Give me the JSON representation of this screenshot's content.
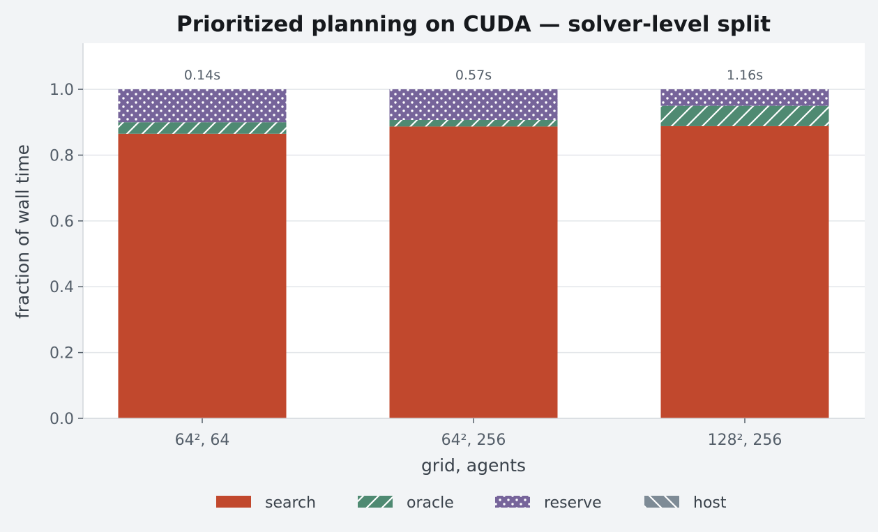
{
  "chart_data": {
    "type": "bar",
    "stacked": true,
    "title": "Prioritized planning on CUDA — solver-level split",
    "xlabel": "grid, agents",
    "ylabel": "fraction of wall time",
    "categories": [
      "64², 64",
      "64², 256",
      "128², 256"
    ],
    "ylim": [
      0,
      1.14
    ],
    "yticks": [
      0.0,
      0.2,
      0.4,
      0.6,
      0.8,
      1.0
    ],
    "ytick_labels": [
      "0.0",
      "0.2",
      "0.4",
      "0.6",
      "0.8",
      "1.0"
    ],
    "grid": true,
    "legend_position": "bottom",
    "series": [
      {
        "name": "search",
        "color": "#c1482d",
        "pattern": "solid",
        "values": [
          0.865,
          0.887,
          0.888
        ]
      },
      {
        "name": "oracle",
        "color": "#4f8a72",
        "pattern": "diagonal",
        "values": [
          0.035,
          0.02,
          0.062
        ]
      },
      {
        "name": "reserve",
        "color": "#76649a",
        "pattern": "dots",
        "values": [
          0.1,
          0.093,
          0.05
        ]
      },
      {
        "name": "host",
        "color": "#7e8b96",
        "pattern": "backslash",
        "values": [
          0.0,
          0.0,
          0.0
        ]
      }
    ],
    "totals": [
      "0.14s",
      "0.57s",
      "1.16s"
    ]
  }
}
